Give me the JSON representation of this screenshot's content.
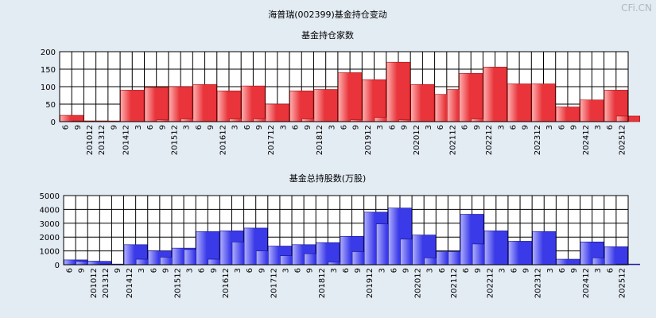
{
  "page_title": "海普瑞(002399)基金持仓变动",
  "watermark": "CFi.CN",
  "colors": {
    "background": "#e3ebf3",
    "plot_bg": "#ffffff",
    "grid": "#000000",
    "red_bar": "#e8343a",
    "blue_bar": "#3a3ae8"
  },
  "chart_data": [
    {
      "type": "bar",
      "title": "基金持仓家数",
      "ylim": [
        0,
        200
      ],
      "yticks": [
        0,
        50,
        100,
        150,
        200
      ],
      "categories": [
        "6",
        "9",
        "201012",
        "201312",
        "9",
        "201412",
        "3",
        "6",
        "9",
        "201512",
        "3",
        "6",
        "9",
        "201612",
        "3",
        "6",
        "9",
        "201712",
        "3",
        "6",
        "9",
        "201812",
        "3",
        "6",
        "9",
        "201912",
        "3",
        "6",
        "9",
        "202012",
        "3",
        "6",
        "202112",
        "6",
        "9",
        "202212",
        "3",
        "6",
        "9",
        "202312",
        "3",
        "6",
        "9",
        "202412",
        "3",
        "6",
        "202512"
      ],
      "values": [
        18,
        2,
        2,
        2,
        0,
        90,
        0,
        98,
        5,
        100,
        8,
        106,
        0,
        88,
        8,
        102,
        8,
        50,
        0,
        88,
        8,
        92,
        0,
        140,
        5,
        120,
        12,
        170,
        5,
        106,
        0,
        78,
        92,
        138,
        8,
        156,
        0,
        108,
        0,
        108,
        0,
        42,
        0,
        62,
        0,
        90,
        16
      ]
    },
    {
      "type": "bar",
      "title": "基金总持股数(万股)",
      "ylim": [
        0,
        5000
      ],
      "yticks": [
        0,
        1000,
        2000,
        3000,
        4000,
        5000
      ],
      "categories": [
        "6",
        "9",
        "201012",
        "201312",
        "9",
        "201412",
        "3",
        "6",
        "9",
        "201512",
        "3",
        "6",
        "9",
        "201612",
        "3",
        "6",
        "9",
        "201712",
        "3",
        "6",
        "9",
        "201812",
        "3",
        "6",
        "9",
        "201912",
        "3",
        "6",
        "9",
        "202012",
        "3",
        "6",
        "202112",
        "6",
        "9",
        "202212",
        "3",
        "6",
        "9",
        "202312",
        "3",
        "6",
        "9",
        "202412",
        "3",
        "6",
        "202512"
      ],
      "values": [
        350,
        250,
        250,
        50,
        0,
        1450,
        400,
        1000,
        550,
        1200,
        1100,
        2400,
        400,
        2450,
        1650,
        2650,
        1000,
        1350,
        650,
        1450,
        800,
        1600,
        200,
        2050,
        950,
        3800,
        2950,
        4100,
        1850,
        2150,
        500,
        950,
        950,
        3650,
        1500,
        2450,
        0,
        1700,
        0,
        2400,
        0,
        400,
        0,
        1650,
        500,
        1300,
        50
      ]
    }
  ]
}
